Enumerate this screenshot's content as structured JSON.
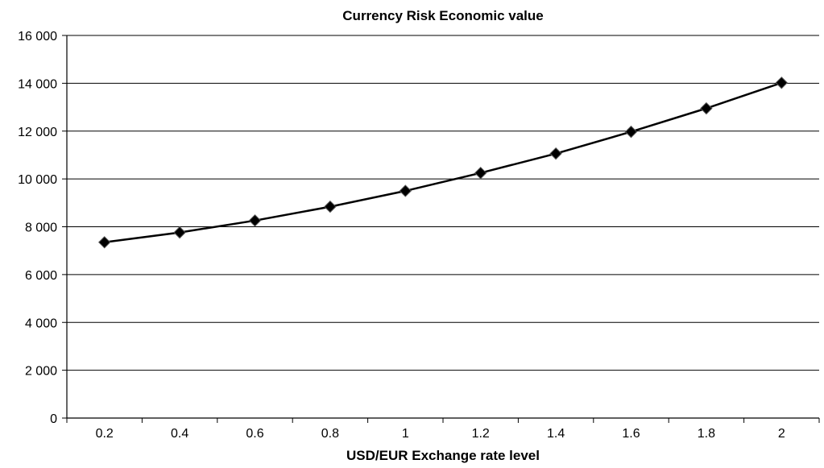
{
  "chart_data": {
    "type": "line",
    "title": "Currency Risk Economic value",
    "xlabel": "USD/EUR Exchange rate level",
    "ylabel": "",
    "x": [
      0.2,
      0.4,
      0.6,
      0.8,
      1,
      1.2,
      1.4,
      1.6,
      1.8,
      2
    ],
    "x_tick_labels": [
      "0.2",
      "0.4",
      "0.6",
      "0.8",
      "1",
      "1.2",
      "1.4",
      "1.6",
      "1.8",
      "2"
    ],
    "y_ticks": [
      0,
      2000,
      4000,
      6000,
      8000,
      10000,
      12000,
      14000,
      16000
    ],
    "y_tick_labels": [
      "0",
      "2 000",
      "4 000",
      "6 000",
      "8 000",
      "10 000",
      "12 000",
      "14 000",
      "16 000"
    ],
    "ylim": [
      0,
      16000
    ],
    "grid": "horizontal",
    "legend": "none",
    "series": [
      {
        "values": [
          7350,
          7760,
          8260,
          8840,
          9500,
          10250,
          11060,
          11970,
          12950,
          14020
        ],
        "marker": "diamond",
        "color": "#000000"
      }
    ]
  }
}
